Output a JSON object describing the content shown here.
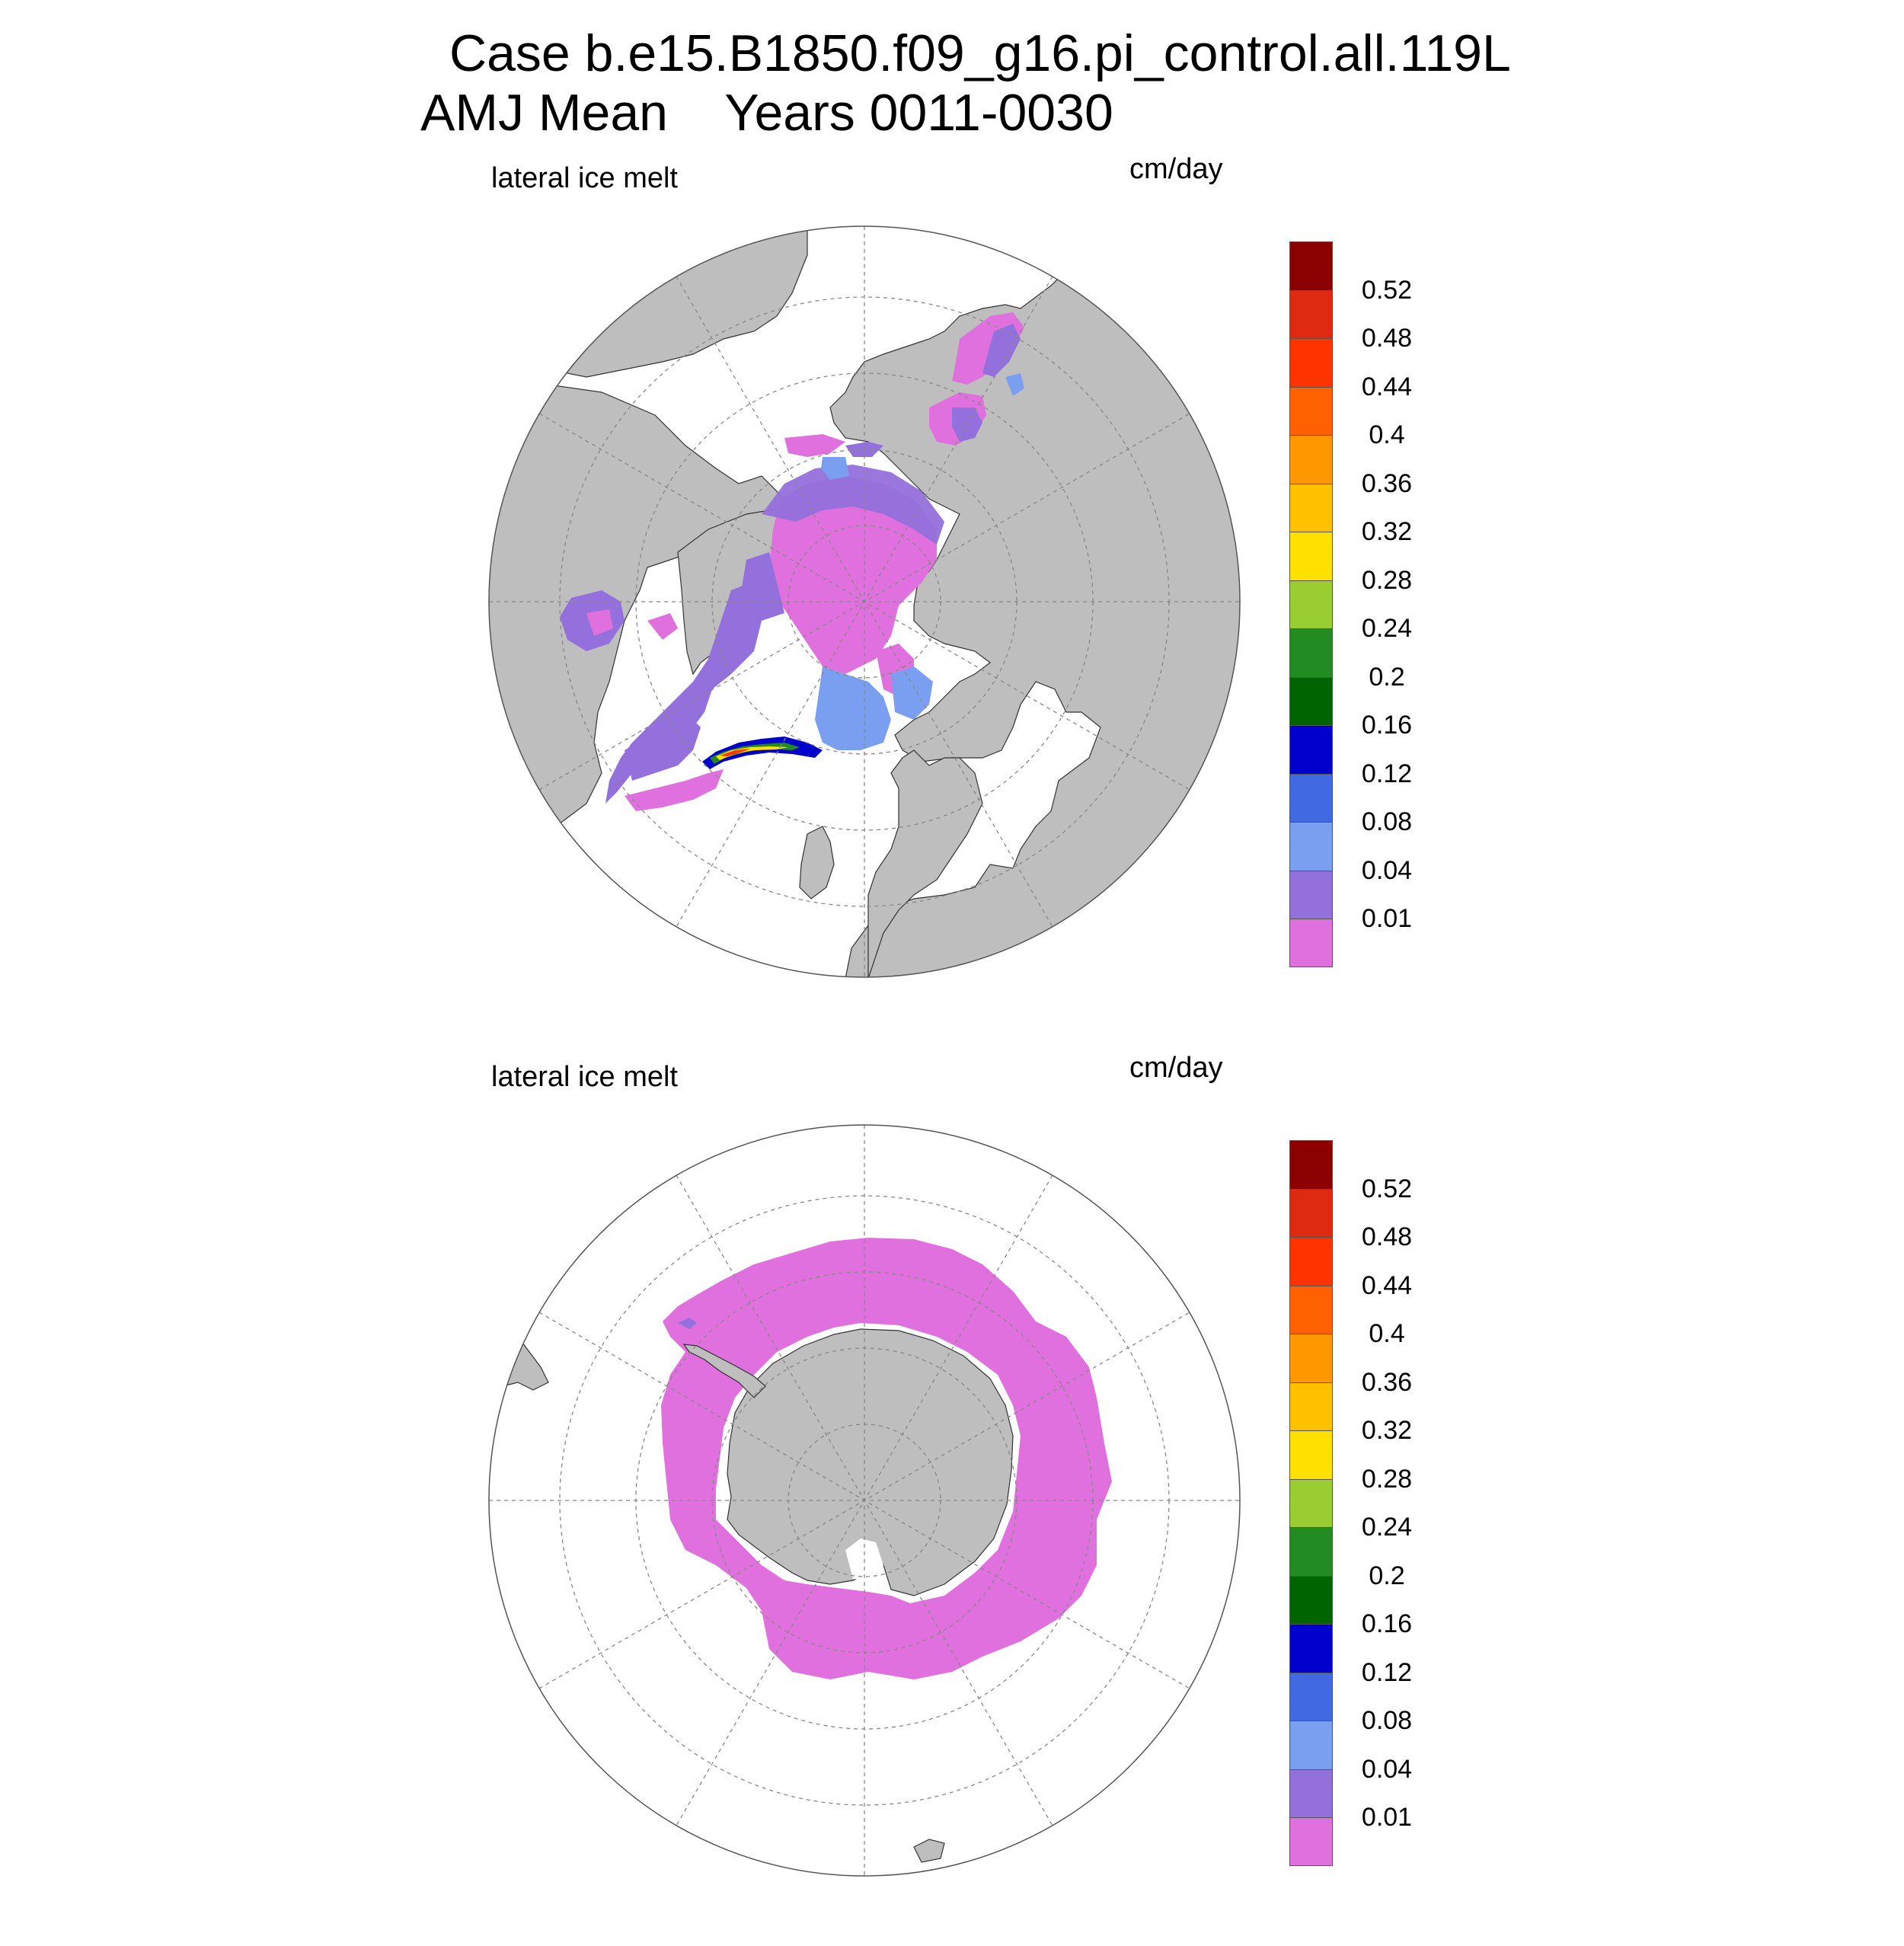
{
  "title": {
    "line1": "Case b.e15.B1850.f09_g16.pi_control.all.119L",
    "line2": "AMJ Mean    Years 0011-0030"
  },
  "panels": [
    {
      "id": "north",
      "variable": "lateral ice melt",
      "units": "cm/day"
    },
    {
      "id": "south",
      "variable": "lateral ice melt",
      "units": "cm/day"
    }
  ],
  "colorbar": {
    "levels": [
      "0.01",
      "0.04",
      "0.08",
      "0.12",
      "0.16",
      "0.2",
      "0.24",
      "0.28",
      "0.32",
      "0.36",
      "0.4",
      "0.44",
      "0.48",
      "0.52"
    ],
    "colors": [
      "#e070dd",
      "#9370db",
      "#7b9ff0",
      "#4169e1",
      "#0000cd",
      "#006400",
      "#228b22",
      "#9acd32",
      "#ffe000",
      "#ffc000",
      "#ff9800",
      "#ff6000",
      "#ff3300",
      "#dd2a10",
      "#8b0000"
    ]
  },
  "map_colors": {
    "land": "#bebebe",
    "ocean": "#ffffff",
    "grid": "#888888",
    "coast": "#222222"
  }
}
